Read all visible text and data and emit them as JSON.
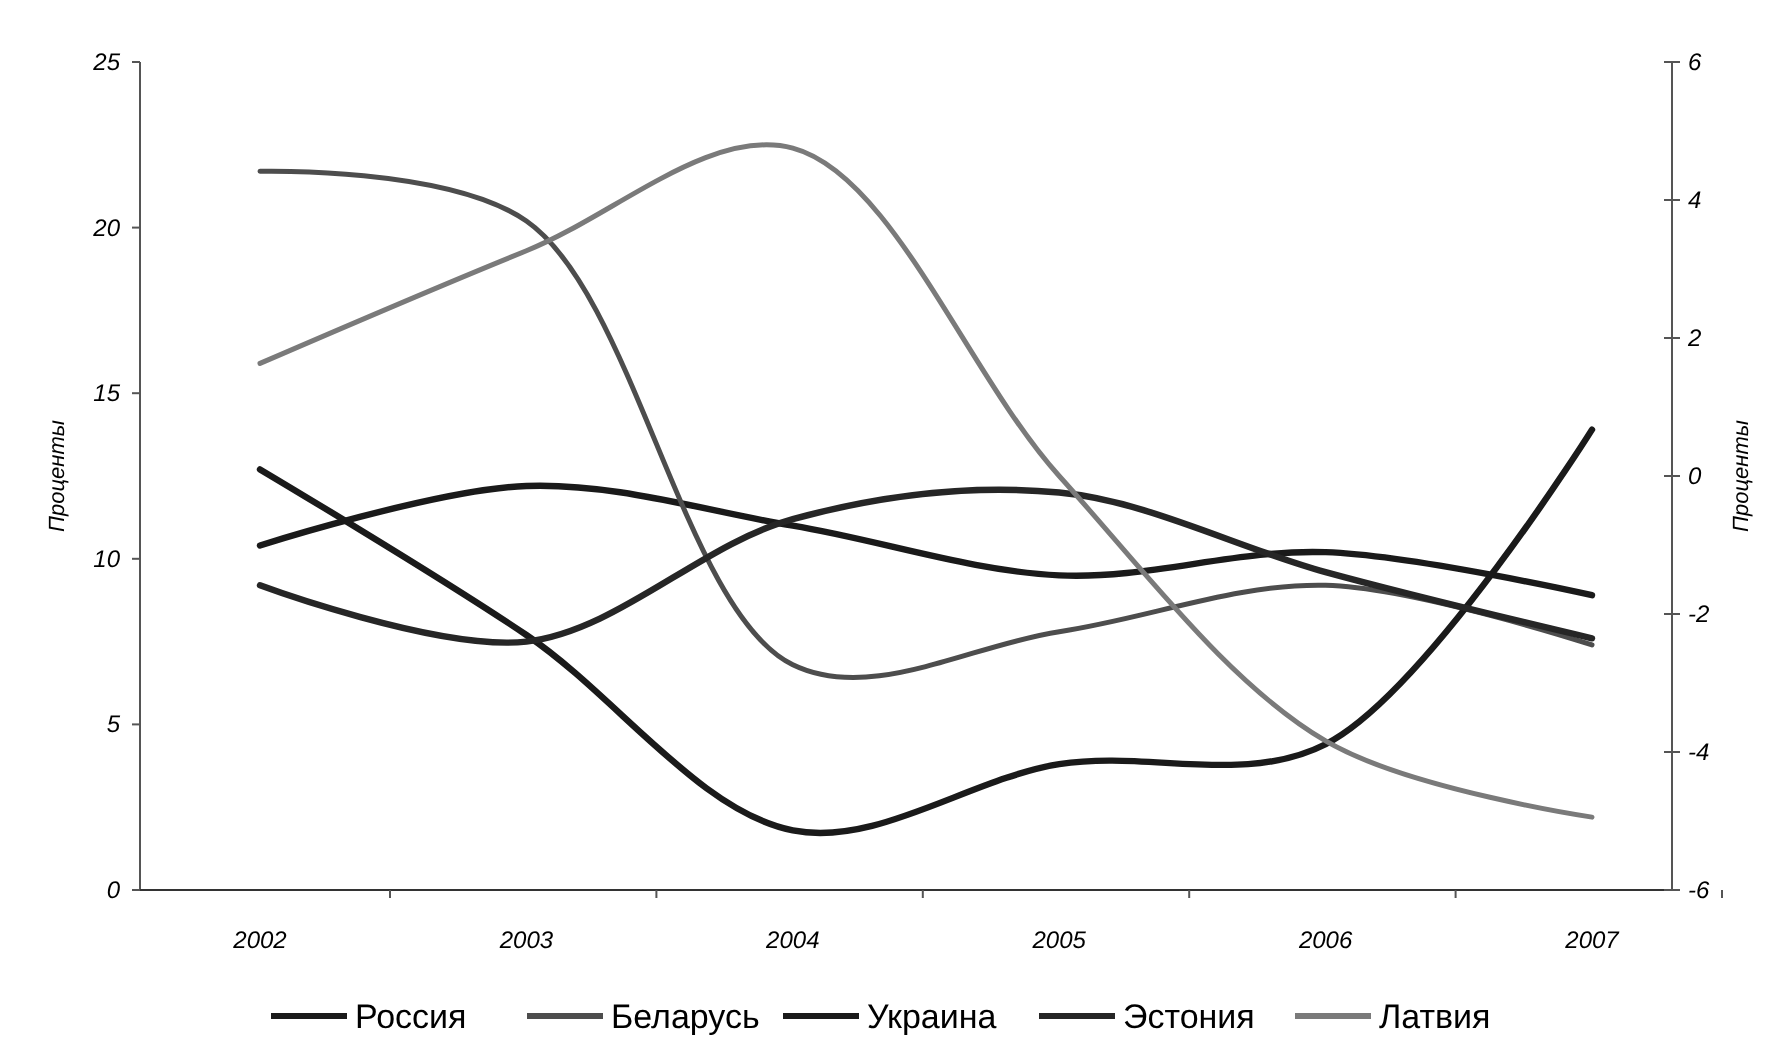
{
  "chart_data": {
    "type": "line",
    "categories": [
      "2002",
      "2003",
      "2004",
      "2005",
      "2006",
      "2007"
    ],
    "series": [
      {
        "name": "Россия",
        "color": "#1a1a1a",
        "values": [
          10.4,
          12.2,
          11.0,
          9.5,
          10.2,
          8.9
        ]
      },
      {
        "name": "Беларусь",
        "color": "#4d4d4d",
        "values": [
          21.7,
          20.2,
          6.8,
          7.8,
          9.2,
          7.4
        ]
      },
      {
        "name": "Украина",
        "color": "#1a1a1a",
        "values": [
          12.7,
          7.7,
          1.8,
          3.8,
          4.4,
          13.9
        ]
      },
      {
        "name": "Эстония",
        "color": "#262626",
        "values": [
          9.2,
          7.5,
          11.2,
          12.0,
          9.6,
          7.6
        ]
      },
      {
        "name": "Латвия",
        "color": "#7a7a7a",
        "values": [
          15.9,
          19.3,
          22.4,
          12.5,
          4.5,
          2.2
        ]
      }
    ],
    "ylabel": "Проценты",
    "y2label": "Проценты",
    "ylim": [
      0,
      25
    ],
    "yticks": [
      0,
      5,
      10,
      15,
      20,
      25
    ],
    "y2lim": [
      -6,
      6
    ],
    "y2ticks": [
      -6,
      -4,
      -2,
      0,
      2,
      4,
      6
    ],
    "legend": "bottom",
    "grid": false,
    "marker": "none",
    "line_style": "solid"
  }
}
